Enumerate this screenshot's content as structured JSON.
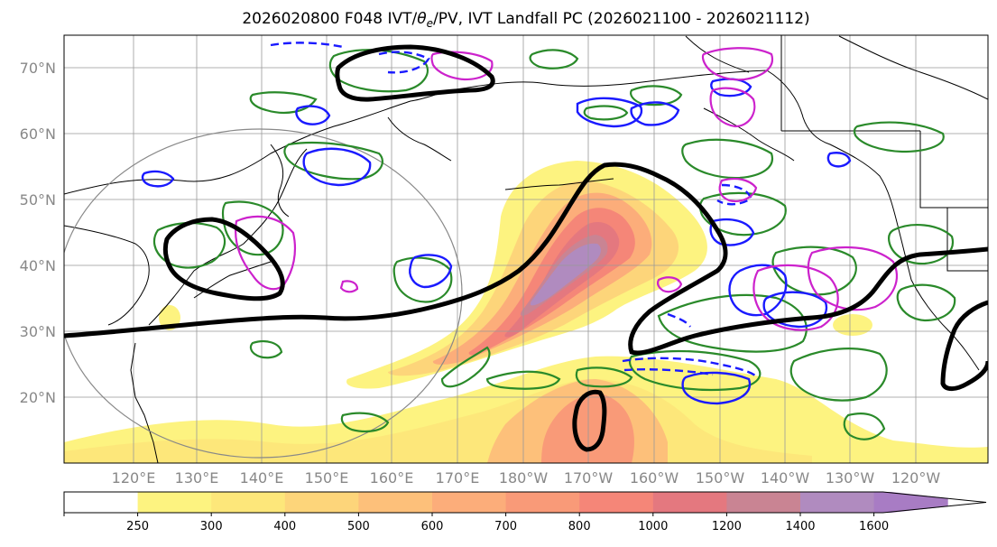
{
  "title": "2026020800 F048 IVT/θe/PV, IVT Landfall PC (2026021100 - 2026021112)",
  "title_prefix": "2026020800 F048 IVT/",
  "title_theta": "θ",
  "title_sub": "e",
  "title_suffix": "/PV, IVT Landfall PC (2026021100 - 2026021112)",
  "lat_labels": [
    "70°N",
    "60°N",
    "50°N",
    "40°N",
    "30°N",
    "20°N"
  ],
  "lat_values": [
    70,
    60,
    50,
    40,
    30,
    20
  ],
  "lon_labels": [
    "120°E",
    "130°E",
    "140°E",
    "150°E",
    "160°E",
    "170°E",
    "180°W",
    "170°W",
    "160°W",
    "150°W",
    "140°W",
    "130°W",
    "120°W"
  ],
  "lon_values": [
    120,
    130,
    140,
    150,
    160,
    170,
    180,
    190,
    200,
    210,
    220,
    230,
    240
  ],
  "colorbar": {
    "levels": [
      250,
      300,
      400,
      500,
      600,
      700,
      800,
      1000,
      1200,
      1400,
      1600
    ],
    "labels": [
      "250",
      "300",
      "400",
      "500",
      "600",
      "700",
      "800",
      "1000",
      "1200",
      "1400",
      "1600"
    ],
    "colors": [
      "#ffffff",
      "#fdf380",
      "#fde77a",
      "#fdd57a",
      "#fdc07a",
      "#fcad7a",
      "#f99a78",
      "#f58678",
      "#e4787f",
      "#c98493",
      "#b08bbf",
      "#a87cc4"
    ]
  },
  "colors": {
    "ivt_outline": "#f0a070",
    "theta_e": "#2a8a2a",
    "pv_solid": "#1a1aff",
    "pv_dashed": "#1a1aff",
    "landfall_pc": "#000000",
    "pv_magenta": "#cc22cc",
    "coast": "#000000",
    "circle": "#888888"
  }
}
